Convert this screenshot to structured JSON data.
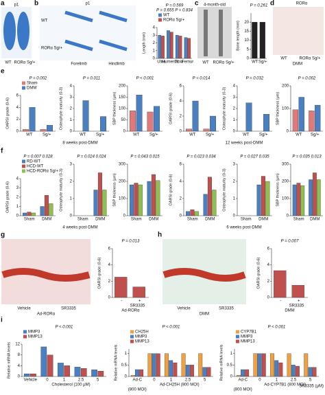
{
  "panels": {
    "a": {
      "letter": "a",
      "texts": [
        "p1",
        "WT",
        "RORα Sg/+"
      ]
    },
    "b": {
      "letter": "b",
      "texts": [
        "p1",
        "WT",
        "RORα Sg/+",
        "Forelimb",
        "Hindlimb"
      ]
    },
    "c": {
      "letter": "c",
      "texts": [
        "4-month-old",
        "WT",
        "RORα Sg/+"
      ]
    },
    "d": {
      "letter": "d",
      "texts": [
        "RORα",
        "WT",
        "RORα Sg/+",
        "DMM"
      ]
    },
    "e": {
      "letter": "e",
      "texts": [
        "8 weeks post-DMM",
        "12 weeks post-DMM"
      ]
    },
    "f": {
      "letter": "f",
      "texts": [
        "4 weeks post-DMM",
        "6 weeks post-DMM"
      ]
    },
    "g": {
      "letter": "g",
      "texts": [
        "Vehicle",
        "SR3335",
        "Ad-RORα"
      ]
    },
    "h": {
      "letter": "h",
      "texts": [
        "Vehicle",
        "SR3335",
        "DMM"
      ]
    },
    "i": {
      "letter": "i",
      "texts": [
        "SR3335 (μM)"
      ]
    }
  },
  "chart_data": [
    {
      "type": "bar",
      "ylabel": "Length (mm)",
      "categories": [
        "Ulna",
        "Humerus",
        "Tibia",
        "Femur"
      ],
      "legend": true,
      "series": [
        {
          "name": "WT",
          "color": "#4a7fc1",
          "values": [
            3.0,
            3.6,
            3.0,
            2.7
          ]
        },
        {
          "name": "RORα Sg/+",
          "color": "#c0504d",
          "values": [
            2.9,
            3.4,
            2.9,
            2.6
          ]
        }
      ],
      "ylim": [
        0,
        4
      ],
      "yticks": [
        0,
        1,
        2,
        3,
        4
      ],
      "annotations": [
        "P = 0.569",
        "P = 0.655  P = 0.834"
      ]
    },
    {
      "type": "bar",
      "ylabel": "Bone length (mm)",
      "categories": [
        "WT",
        "Sg/+"
      ],
      "values": [
        20,
        20
      ],
      "color": "#222222",
      "ylim": [
        0,
        25
      ],
      "yticks": [
        0,
        5,
        10,
        15,
        20
      ],
      "annotations": [
        "P = 0.261"
      ]
    },
    {
      "type": "bar",
      "ylabel": "OARSI grade (0-6)",
      "categories": [
        "WT",
        "Sg/+"
      ],
      "legend": true,
      "series": [
        {
          "name": "Sham",
          "color": "#e07a7a",
          "values": [
            0.3,
            0.3
          ]
        },
        {
          "name": "DMM",
          "color": "#4a7fc1",
          "values": [
            4,
            1
          ]
        }
      ],
      "ylim": [
        0,
        6
      ],
      "yticks": [
        0,
        2,
        4,
        6
      ],
      "annotations": [
        "P = 0.002"
      ]
    },
    {
      "type": "bar",
      "ylabel": "Osteophyte maturity (0-3)",
      "categories": [
        "WT",
        "Sg/+"
      ],
      "series": [
        {
          "color": "#e07a7a",
          "values": [
            0,
            0
          ]
        },
        {
          "color": "#4a7fc1",
          "values": [
            2.7,
            1.3
          ]
        }
      ],
      "ylim": [
        0,
        4
      ],
      "yticks": [
        0,
        1,
        2,
        3,
        4
      ],
      "annotations": [
        "P = 0.011"
      ]
    },
    {
      "type": "bar",
      "ylabel": "SBP thickness (μm)",
      "categories": [
        "WT",
        "Sg/+"
      ],
      "series": [
        {
          "color": "#e07a7a",
          "values": [
            90,
            85
          ]
        },
        {
          "color": "#4a7fc1",
          "values": [
            160,
            110
          ]
        }
      ],
      "ylim": [
        0,
        200
      ],
      "yticks": [
        0,
        50,
        100,
        150,
        200
      ],
      "annotations": [
        "P < 0.001"
      ]
    },
    {
      "type": "bar",
      "ylabel": "OARSI grade (0-6)",
      "categories": [
        "WT",
        "Sg/+"
      ],
      "series": [
        {
          "color": "#e07a7a",
          "values": [
            0.3,
            0.3
          ]
        },
        {
          "color": "#4a7fc1",
          "values": [
            4,
            2
          ]
        }
      ],
      "ylim": [
        0,
        6
      ],
      "yticks": [
        0,
        2,
        4,
        6
      ],
      "annotations": [
        "P = 0.014"
      ]
    },
    {
      "type": "bar",
      "ylabel": "Osteophyte maturity (0-3)",
      "categories": [
        "WT",
        "Sg/+"
      ],
      "series": [
        {
          "color": "#e07a7a",
          "values": [
            0,
            0
          ]
        },
        {
          "color": "#4a7fc1",
          "values": [
            2.5,
            1.5
          ]
        }
      ],
      "ylim": [
        0,
        4
      ],
      "yticks": [
        0,
        1,
        2,
        3,
        4
      ],
      "annotations": [
        "P = 0.032"
      ]
    },
    {
      "type": "bar",
      "ylabel": "SBP thickness (μm)",
      "categories": [
        "WT",
        "Sg/+"
      ],
      "series": [
        {
          "color": "#e07a7a",
          "values": [
            95,
            90
          ]
        },
        {
          "color": "#4a7fc1",
          "values": [
            150,
            115
          ]
        }
      ],
      "ylim": [
        0,
        200
      ],
      "yticks": [
        0,
        100,
        200
      ],
      "annotations": [
        "P = 0.002"
      ]
    },
    {
      "type": "bar",
      "ylabel": "OARSI grade (0-6)",
      "categories": [
        "Sham",
        "DMM"
      ],
      "legend": true,
      "series": [
        {
          "name": "RD-WT",
          "color": "#4a7fc1",
          "values": [
            0.3,
            1
          ]
        },
        {
          "name": "HCD-WT",
          "color": "#c0504d",
          "values": [
            0.4,
            2.2
          ]
        },
        {
          "name": "HCD-RORα Sg/+",
          "color": "#8fbf4f",
          "values": [
            0.3,
            1.3
          ]
        }
      ],
      "ylim": [
        0,
        4
      ],
      "yticks": [
        0,
        1,
        2,
        3,
        4
      ],
      "annotations": [
        "P = 0.007  0.028"
      ]
    },
    {
      "type": "bar",
      "ylabel": "Osteophyte maturity (0-3)",
      "categories": [
        "Sham",
        "DMM"
      ],
      "series": [
        {
          "color": "#4a7fc1",
          "values": [
            0,
            1.5
          ]
        },
        {
          "color": "#c0504d",
          "values": [
            0,
            2.5
          ]
        },
        {
          "color": "#8fbf4f",
          "values": [
            0,
            1.5
          ]
        }
      ],
      "ylim": [
        0,
        3
      ],
      "yticks": [
        0,
        1,
        2,
        3
      ],
      "annotations": [
        "P = 0.024  0.024"
      ]
    },
    {
      "type": "bar",
      "ylabel": "SBP thickness (μm)",
      "categories": [
        "Sham",
        "DMM"
      ],
      "series": [
        {
          "color": "#4a7fc1",
          "values": [
            180,
            200
          ]
        },
        {
          "color": "#c0504d",
          "values": [
            190,
            240
          ]
        },
        {
          "color": "#8fbf4f",
          "values": [
            180,
            205
          ]
        }
      ],
      "ylim": [
        0,
        300
      ],
      "yticks": [
        0,
        100,
        200,
        300
      ],
      "annotations": [
        "P = 0.043  0.015"
      ]
    },
    {
      "type": "bar",
      "ylabel": "OARSI grade (0-6)",
      "categories": [
        "Sham",
        "DMM"
      ],
      "series": [
        {
          "color": "#4a7fc1",
          "values": [
            0.5,
            2.5
          ]
        },
        {
          "color": "#c0504d",
          "values": [
            0.7,
            4.5
          ]
        },
        {
          "color": "#8fbf4f",
          "values": [
            0.5,
            3
          ]
        }
      ],
      "ylim": [
        0,
        6
      ],
      "yticks": [
        0,
        2,
        4,
        6
      ],
      "annotations": [
        "P = 0.023  0.034"
      ]
    },
    {
      "type": "bar",
      "ylabel": "Osteophyte maturity (0-3)",
      "categories": [
        "Sham",
        "DMM"
      ],
      "series": [
        {
          "color": "#4a7fc1",
          "values": [
            0,
            1.8
          ]
        },
        {
          "color": "#c0504d",
          "values": [
            0,
            2.3
          ]
        },
        {
          "color": "#8fbf4f",
          "values": [
            0,
            2
          ]
        }
      ],
      "ylim": [
        0,
        3
      ],
      "yticks": [
        0,
        1,
        2,
        3
      ],
      "annotations": [
        "P = 0.027  0.035"
      ]
    },
    {
      "type": "bar",
      "ylabel": "SBP thickness (μm)",
      "categories": [
        "Sham",
        "DMM"
      ],
      "series": [
        {
          "color": "#4a7fc1",
          "values": [
            180,
            210
          ]
        },
        {
          "color": "#c0504d",
          "values": [
            190,
            250
          ]
        },
        {
          "color": "#8fbf4f",
          "values": [
            175,
            210
          ]
        }
      ],
      "ylim": [
        0,
        300
      ],
      "yticks": [
        0,
        100,
        200,
        300
      ],
      "annotations": [
        "P = 0.035  0.013"
      ]
    },
    {
      "type": "bar",
      "ylabel": "OARSI grade (0-6)",
      "categories": [
        "-",
        "+"
      ],
      "xlabel": "SR3335",
      "xnote": "Ad-RORα",
      "series": [
        {
          "color": "#c0504d",
          "values": [
            2.5,
            1.3
          ]
        }
      ],
      "ylim": [
        0,
        6
      ],
      "yticks": [
        0,
        2,
        4,
        6
      ],
      "annotations": [
        "P = 0.013"
      ]
    },
    {
      "type": "bar",
      "ylabel": "OARSI grade (0-6)",
      "categories": [
        "-",
        "+"
      ],
      "xlabel": "SR3335",
      "xnote": "DMM",
      "series": [
        {
          "color": "#c0504d",
          "values": [
            3.3,
            1.5
          ]
        }
      ],
      "ylim": [
        0,
        6
      ],
      "yticks": [
        0,
        2,
        4,
        6
      ],
      "annotations": [
        "P = 0.007"
      ]
    },
    {
      "type": "bar",
      "ylabel": "Relative mRNA levels",
      "categories": [
        "Vehicle",
        "0",
        "1",
        "2.5",
        "5"
      ],
      "xlabel": "Cholesterol (100 μM)",
      "legend": true,
      "series": [
        {
          "name": "MMP3",
          "color": "#4a7fc1",
          "values": [
            1,
            11,
            5,
            3.5,
            2.5
          ]
        },
        {
          "name": "MMP13",
          "color": "#c0504d",
          "values": [
            1,
            8,
            4,
            3,
            2
          ]
        }
      ],
      "ylim": [
        0,
        12
      ],
      "yticks": [
        0,
        4,
        8,
        12
      ],
      "annotations": [
        "P < 0.001"
      ]
    },
    {
      "type": "bar",
      "ylabel": "Relative mRNA levels",
      "categories": [
        "Ad-C",
        "0",
        "1",
        "2.5",
        "5"
      ],
      "xlabel": "Ad-CH25H (800 MOI)",
      "xnote": "(800 MOI)",
      "legend": true,
      "series": [
        {
          "name": "CH25H",
          "color": "#f0a040",
          "values": [
            0.05,
            1,
            1,
            1,
            1
          ]
        },
        {
          "name": "MMP3",
          "color": "#4a7fc1",
          "values": [
            0.3,
            1,
            0.7,
            0.5,
            0.4
          ]
        },
        {
          "name": "MMP13",
          "color": "#c0504d",
          "values": [
            0.3,
            1,
            0.6,
            0.5,
            0.4
          ]
        }
      ],
      "ylim": [
        0,
        1.2
      ],
      "yticks": [
        0,
        0.5,
        1
      ],
      "annotations": [
        "P < 0.001"
      ]
    },
    {
      "type": "bar",
      "ylabel": "Relative mRNA levels",
      "categories": [
        "Ad-C",
        "0",
        "1",
        "2.5",
        "5"
      ],
      "xlabel": "Ad-CYP7B1 (800 MOI)",
      "xnote": "(800 MOI)",
      "legend": true,
      "series": [
        {
          "name": "CYP7B1",
          "color": "#f0a040",
          "values": [
            0.05,
            1,
            1,
            1,
            1
          ]
        },
        {
          "name": "MMP3",
          "color": "#4a7fc1",
          "values": [
            0.3,
            1,
            0.7,
            0.5,
            0.4
          ]
        },
        {
          "name": "MMP13",
          "color": "#c0504d",
          "values": [
            0.3,
            1,
            0.6,
            0.45,
            0.4
          ]
        }
      ],
      "ylim": [
        0,
        1.2
      ],
      "yticks": [
        0,
        0.5,
        1
      ],
      "annotations": [
        "P < 0.001"
      ]
    }
  ]
}
